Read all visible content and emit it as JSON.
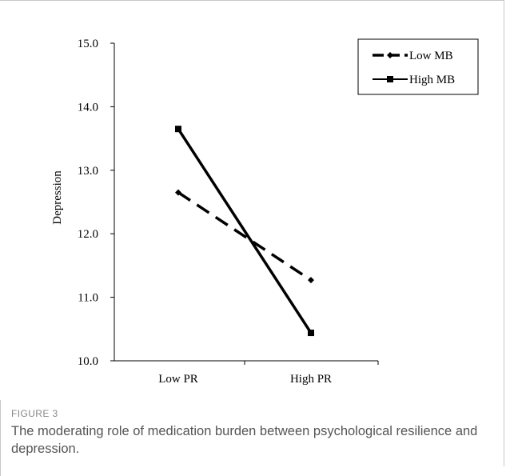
{
  "figure": {
    "label": "FIGURE 3",
    "caption": "The moderating role of medication burden between psychological resilience and depression."
  },
  "chart_data": {
    "type": "line",
    "title": "",
    "xlabel": "",
    "ylabel": "Depression",
    "categories": [
      "Low PR",
      "High PR"
    ],
    "ylim": [
      10.0,
      15.0
    ],
    "yticks": [
      "10.0",
      "11.0",
      "12.0",
      "13.0",
      "14.0",
      "15.0"
    ],
    "grid": false,
    "legend_position": "top-right",
    "series": [
      {
        "name": "Low MB",
        "values": [
          12.65,
          11.27
        ],
        "style": "dashed",
        "marker": "diamond",
        "color": "#000000"
      },
      {
        "name": "High MB",
        "values": [
          13.65,
          10.44
        ],
        "style": "solid",
        "marker": "square",
        "color": "#000000"
      }
    ]
  }
}
